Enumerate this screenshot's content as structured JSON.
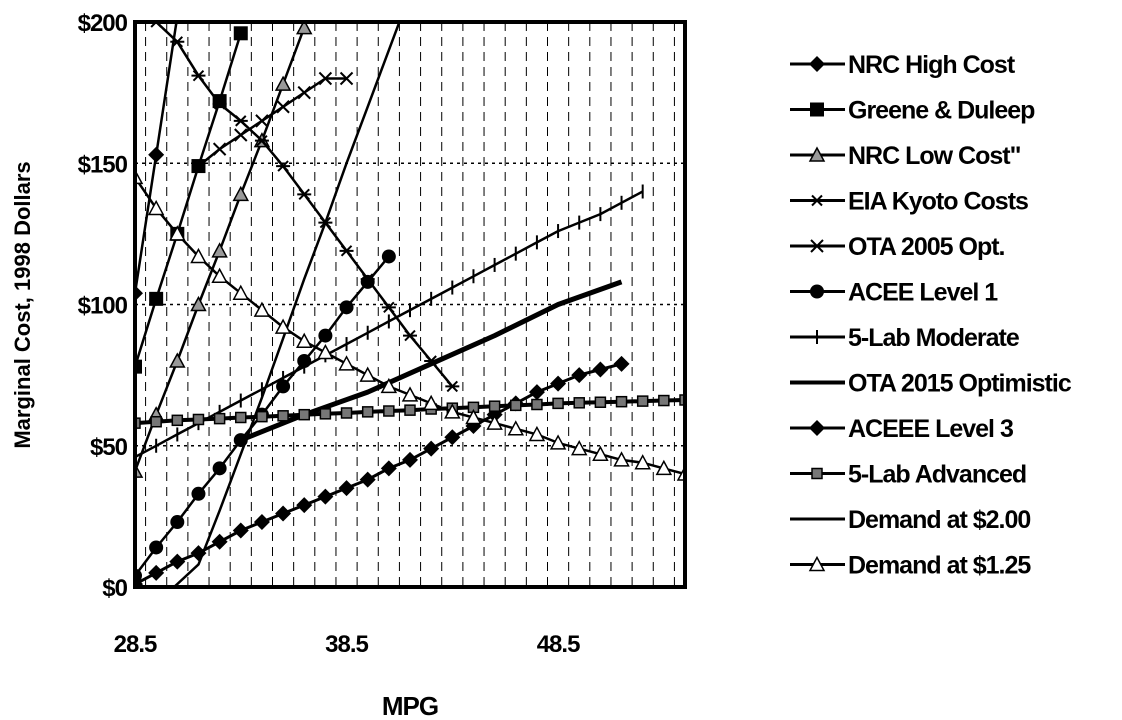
{
  "chart_data": {
    "type": "line",
    "title": "",
    "xlabel": "MPG",
    "ylabel": "Marginal Cost, 1998 Dollars",
    "xlim": [
      28.5,
      54.5
    ],
    "ylim": [
      0,
      200
    ],
    "x_ticks": [
      "28.5",
      "38.5",
      "48.5"
    ],
    "y_ticks": [
      "$0",
      "$50",
      "$100",
      "$150",
      "$200"
    ],
    "grid": "dashed vertical gridlines at every MPG unit; dotted horizontal gridlines at $50, $100, $150",
    "legend_position": "right",
    "series": [
      {
        "name": "NRC High Cost",
        "marker": "diamond-filled",
        "x": [
          28.5,
          29.5,
          30.5
        ],
        "y": [
          104,
          153,
          202
        ]
      },
      {
        "name": "Greene & Duleep",
        "marker": "square-filled",
        "x": [
          28.5,
          29.5,
          30.5,
          31.5,
          32.5,
          33.5
        ],
        "y": [
          78,
          102,
          125,
          149,
          172,
          196
        ]
      },
      {
        "name": "NRC Low Cost\"",
        "marker": "triangle-gray",
        "x": [
          28.5,
          29.5,
          30.5,
          31.5,
          32.5,
          33.5,
          34.5,
          35.5,
          36.5,
          37.5
        ],
        "y": [
          41,
          61,
          80,
          100,
          119,
          139,
          158,
          178,
          198,
          218
        ]
      },
      {
        "name": "EIA Kyoto Costs",
        "marker": "asterisk",
        "x": [
          29.5,
          30.5,
          31.5,
          32.5,
          33.5,
          34.5,
          35.5,
          36.5,
          37.5,
          38.5,
          39.5,
          40.5,
          41.5,
          42.5,
          43.5
        ],
        "y": [
          200,
          193,
          181,
          171,
          165,
          158,
          149,
          139,
          129,
          119,
          109,
          99,
          89,
          80,
          71
        ]
      },
      {
        "name": "OTA 2005 Opt.",
        "marker": "x",
        "x": [
          31.5,
          32.5,
          33.5,
          34.5,
          35.5,
          36.5,
          37.5,
          38.5
        ],
        "y": [
          149,
          155,
          160,
          165,
          170,
          175,
          180,
          180
        ]
      },
      {
        "name": "ACEE Level 1",
        "marker": "circle-filled",
        "x": [
          28.5,
          29.5,
          30.5,
          31.5,
          32.5,
          33.5,
          34.5,
          35.5,
          36.5,
          37.5,
          38.5,
          39.5,
          40.5
        ],
        "y": [
          4,
          14,
          23,
          33,
          42,
          52,
          61,
          71,
          80,
          89,
          99,
          108,
          117
        ]
      },
      {
        "name": "5-Lab Moderate",
        "marker": "plus",
        "x": [
          28.5,
          29.5,
          30.5,
          31.5,
          32.5,
          33.5,
          34.5,
          35.5,
          36.5,
          37.5,
          38.5,
          39.5,
          40.5,
          41.5,
          42.5,
          43.5,
          44.5,
          45.5,
          46.5,
          47.5,
          48.5,
          49.5,
          50.5,
          51.5,
          52.5
        ],
        "y": [
          46,
          50,
          54,
          58,
          62,
          66,
          70,
          74,
          78,
          82,
          86,
          90,
          94,
          98,
          102,
          106,
          110,
          114,
          118,
          122,
          126,
          129,
          132,
          136,
          140
        ]
      },
      {
        "name": "OTA 2015 Optimistic",
        "marker": "none",
        "x": [
          33.5,
          36.5,
          39.5,
          42.5,
          45.5,
          48.5,
          51.5
        ],
        "y": [
          52,
          61,
          69,
          79,
          89,
          100,
          108
        ]
      },
      {
        "name": "ACEEE Level 3",
        "marker": "diamond-filled",
        "x": [
          28.5,
          29.5,
          30.5,
          31.5,
          32.5,
          33.5,
          34.5,
          35.5,
          36.5,
          37.5,
          38.5,
          39.5,
          40.5,
          41.5,
          42.5,
          43.5,
          44.5,
          45.5,
          46.5,
          47.5,
          48.5,
          49.5,
          50.5,
          51.5
        ],
        "y": [
          1,
          5,
          9,
          12,
          16,
          20,
          23,
          26,
          29,
          32,
          35,
          38,
          42,
          45,
          49,
          53,
          57,
          61,
          65,
          69,
          72,
          75,
          77,
          79
        ]
      },
      {
        "name": "5-Lab Advanced",
        "marker": "square-gray",
        "x": [
          28.5,
          29.5,
          30.5,
          31.5,
          32.5,
          33.5,
          34.5,
          35.5,
          36.5,
          37.5,
          38.5,
          39.5,
          40.5,
          41.5,
          42.5,
          43.5,
          44.5,
          45.5,
          46.5,
          47.5,
          48.5,
          49.5,
          50.5,
          51.5,
          52.5,
          53.5,
          54.5
        ],
        "y": [
          58,
          58.5,
          59,
          59.3,
          59.6,
          60,
          60.3,
          60.6,
          61,
          61.3,
          61.6,
          62,
          62.3,
          62.6,
          63,
          63.3,
          63.6,
          64,
          64.3,
          64.6,
          65,
          65.2,
          65.4,
          65.6,
          65.8,
          66,
          66.2
        ]
      },
      {
        "name": "Demand at $2.00",
        "marker": "none",
        "x": [
          30.35,
          31.5,
          32.5,
          33.5,
          34.5,
          35.5,
          36.5,
          37.5,
          38.5,
          39.5,
          40.5,
          41.5,
          42.5
        ],
        "y": [
          0,
          8,
          27,
          47,
          67,
          88,
          109,
          129,
          150,
          170,
          190,
          210,
          230
        ]
      },
      {
        "name": "Demand at $1.25",
        "marker": "triangle-open",
        "x": [
          28.5,
          29.5,
          30.5,
          31.5,
          32.5,
          33.5,
          34.5,
          35.5,
          36.5,
          37.5,
          38.5,
          39.5,
          40.5,
          41.5,
          42.5,
          43.5,
          44.5,
          45.5,
          46.5,
          47.5,
          48.5,
          49.5,
          50.5,
          51.5,
          52.5,
          53.5,
          54.5
        ],
        "y": [
          145,
          134,
          125,
          117,
          110,
          104,
          98,
          92,
          87,
          83,
          79,
          75,
          71,
          68,
          65,
          62,
          60,
          58,
          56,
          54,
          51,
          49,
          47,
          45,
          44,
          42,
          40
        ]
      }
    ]
  }
}
